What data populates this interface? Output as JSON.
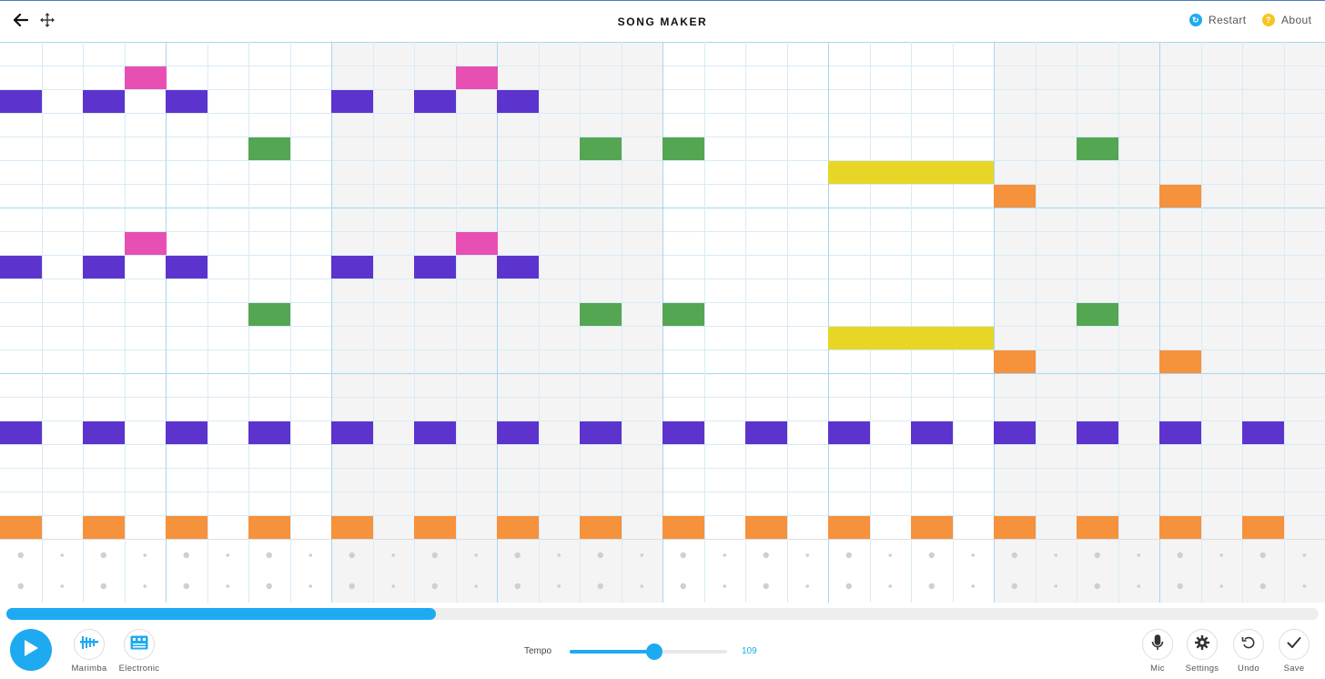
{
  "header": {
    "title": "SONG MAKER",
    "back_icon": "back-arrow-icon",
    "move_icon": "move-arrows-icon",
    "restart_label": "Restart",
    "about_label": "About",
    "restart_color": "#1eaaf1",
    "about_color": "#f8c420"
  },
  "grid": {
    "columns": 32,
    "melody_rows": 21,
    "notes_per_octave": 7,
    "beats_per_bar": 4,
    "shaded_bars": [
      2,
      3,
      6,
      7
    ],
    "colors": {
      "c": "#5c34cd",
      "d": "#e84fb3",
      "e": "#e8d627",
      "f": "#f6913c",
      "g": "#54a653",
      "a": "#5ad6d6",
      "b": "#5c34cd",
      "gridline": "#d8ebf7",
      "barline": "#a8d6f0",
      "shade": "#f4f4f4",
      "percussion_dot": "#cfcfcf"
    },
    "melody_notes": [
      {
        "row": 1,
        "col": 3,
        "len": 1,
        "color": "#e84fb3"
      },
      {
        "row": 2,
        "col": 0,
        "len": 1,
        "color": "#5c34cd"
      },
      {
        "row": 2,
        "col": 2,
        "len": 1,
        "color": "#5c34cd"
      },
      {
        "row": 2,
        "col": 4,
        "len": 1,
        "color": "#5c34cd"
      },
      {
        "row": 1,
        "col": 11,
        "len": 1,
        "color": "#e84fb3"
      },
      {
        "row": 2,
        "col": 8,
        "len": 1,
        "color": "#5c34cd"
      },
      {
        "row": 2,
        "col": 10,
        "len": 1,
        "color": "#5c34cd"
      },
      {
        "row": 2,
        "col": 12,
        "len": 1,
        "color": "#5c34cd"
      },
      {
        "row": 4,
        "col": 6,
        "len": 1,
        "color": "#54a653"
      },
      {
        "row": 4,
        "col": 14,
        "len": 1,
        "color": "#54a653"
      },
      {
        "row": 4,
        "col": 16,
        "len": 1,
        "color": "#54a653"
      },
      {
        "row": 4,
        "col": 26,
        "len": 1,
        "color": "#54a653"
      },
      {
        "row": 5,
        "col": 20,
        "len": 4,
        "color": "#e8d627"
      },
      {
        "row": 6,
        "col": 24,
        "len": 1,
        "color": "#f6913c"
      },
      {
        "row": 6,
        "col": 28,
        "len": 1,
        "color": "#f6913c"
      },
      {
        "row": 8,
        "col": 3,
        "len": 1,
        "color": "#e84fb3"
      },
      {
        "row": 9,
        "col": 0,
        "len": 1,
        "color": "#5c34cd"
      },
      {
        "row": 9,
        "col": 2,
        "len": 1,
        "color": "#5c34cd"
      },
      {
        "row": 9,
        "col": 4,
        "len": 1,
        "color": "#5c34cd"
      },
      {
        "row": 8,
        "col": 11,
        "len": 1,
        "color": "#e84fb3"
      },
      {
        "row": 9,
        "col": 8,
        "len": 1,
        "color": "#5c34cd"
      },
      {
        "row": 9,
        "col": 10,
        "len": 1,
        "color": "#5c34cd"
      },
      {
        "row": 9,
        "col": 12,
        "len": 1,
        "color": "#5c34cd"
      },
      {
        "row": 11,
        "col": 6,
        "len": 1,
        "color": "#54a653"
      },
      {
        "row": 11,
        "col": 14,
        "len": 1,
        "color": "#54a653"
      },
      {
        "row": 11,
        "col": 16,
        "len": 1,
        "color": "#54a653"
      },
      {
        "row": 11,
        "col": 26,
        "len": 1,
        "color": "#54a653"
      },
      {
        "row": 12,
        "col": 20,
        "len": 4,
        "color": "#e8d627"
      },
      {
        "row": 13,
        "col": 24,
        "len": 1,
        "color": "#f6913c"
      },
      {
        "row": 13,
        "col": 28,
        "len": 1,
        "color": "#f6913c"
      },
      {
        "row": 16,
        "col": 0,
        "len": 1,
        "color": "#5c34cd"
      },
      {
        "row": 16,
        "col": 2,
        "len": 1,
        "color": "#5c34cd"
      },
      {
        "row": 16,
        "col": 4,
        "len": 1,
        "color": "#5c34cd"
      },
      {
        "row": 16,
        "col": 6,
        "len": 1,
        "color": "#5c34cd"
      },
      {
        "row": 16,
        "col": 8,
        "len": 1,
        "color": "#5c34cd"
      },
      {
        "row": 16,
        "col": 10,
        "len": 1,
        "color": "#5c34cd"
      },
      {
        "row": 16,
        "col": 12,
        "len": 1,
        "color": "#5c34cd"
      },
      {
        "row": 16,
        "col": 14,
        "len": 1,
        "color": "#5c34cd"
      },
      {
        "row": 16,
        "col": 16,
        "len": 1,
        "color": "#5c34cd"
      },
      {
        "row": 16,
        "col": 18,
        "len": 1,
        "color": "#5c34cd"
      },
      {
        "row": 16,
        "col": 20,
        "len": 1,
        "color": "#5c34cd"
      },
      {
        "row": 16,
        "col": 22,
        "len": 1,
        "color": "#5c34cd"
      },
      {
        "row": 16,
        "col": 24,
        "len": 1,
        "color": "#5c34cd"
      },
      {
        "row": 16,
        "col": 26,
        "len": 1,
        "color": "#5c34cd"
      },
      {
        "row": 16,
        "col": 28,
        "len": 1,
        "color": "#5c34cd"
      },
      {
        "row": 16,
        "col": 30,
        "len": 1,
        "color": "#5c34cd"
      },
      {
        "row": 20,
        "col": 0,
        "len": 1,
        "color": "#f6913c"
      },
      {
        "row": 20,
        "col": 2,
        "len": 1,
        "color": "#f6913c"
      },
      {
        "row": 20,
        "col": 4,
        "len": 1,
        "color": "#f6913c"
      },
      {
        "row": 20,
        "col": 6,
        "len": 1,
        "color": "#f6913c"
      },
      {
        "row": 20,
        "col": 8,
        "len": 1,
        "color": "#f6913c"
      },
      {
        "row": 20,
        "col": 10,
        "len": 1,
        "color": "#f6913c"
      },
      {
        "row": 20,
        "col": 12,
        "len": 1,
        "color": "#f6913c"
      },
      {
        "row": 20,
        "col": 14,
        "len": 1,
        "color": "#f6913c"
      },
      {
        "row": 20,
        "col": 16,
        "len": 1,
        "color": "#f6913c"
      },
      {
        "row": 20,
        "col": 18,
        "len": 1,
        "color": "#f6913c"
      },
      {
        "row": 20,
        "col": 20,
        "len": 1,
        "color": "#f6913c"
      },
      {
        "row": 20,
        "col": 22,
        "len": 1,
        "color": "#f6913c"
      },
      {
        "row": 20,
        "col": 24,
        "len": 1,
        "color": "#f6913c"
      },
      {
        "row": 20,
        "col": 26,
        "len": 1,
        "color": "#f6913c"
      },
      {
        "row": 20,
        "col": 28,
        "len": 1,
        "color": "#f6913c"
      },
      {
        "row": 20,
        "col": 30,
        "len": 1,
        "color": "#f6913c"
      }
    ],
    "percussion_rows": 2
  },
  "playback": {
    "progress": 0.327
  },
  "controls": {
    "play_icon": "play-icon",
    "instrument_label": "Marimba",
    "percussion_label": "Electronic",
    "tempo_label": "Tempo",
    "tempo_value": "109",
    "tempo_min": 50,
    "tempo_max": 160,
    "mic_label": "Mic",
    "settings_label": "Settings",
    "undo_label": "Undo",
    "save_label": "Save"
  }
}
